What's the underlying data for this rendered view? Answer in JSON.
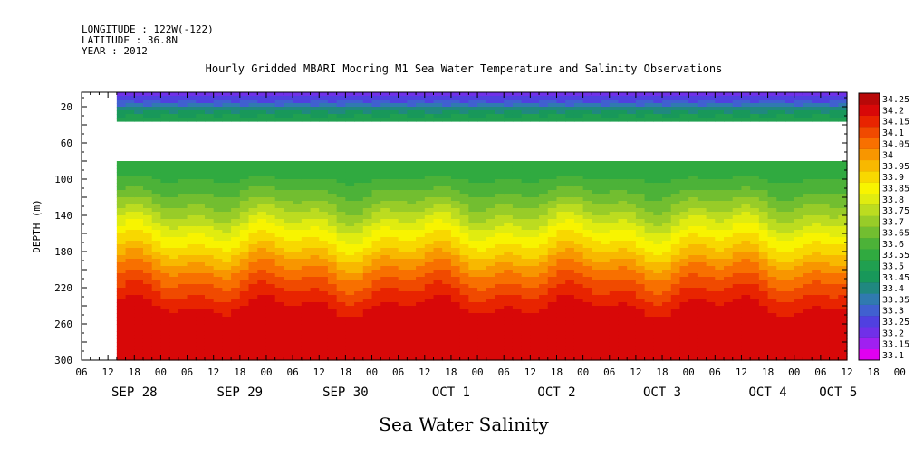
{
  "header_lines": [
    "LONGITUDE : 122W(-122)",
    "LATITUDE : 36.8N",
    "YEAR : 2012"
  ],
  "chart_data": {
    "type": "heatmap",
    "title": "Hourly Gridded MBARI Mooring M1 Sea Water Temperature and Salinity Observations",
    "xlabel": "Sea Water Salinity",
    "ylabel": "DEPTH (m)",
    "x_hour_ticks": [
      "06",
      "12",
      "18",
      "00",
      "06",
      "12",
      "18",
      "00",
      "06",
      "12",
      "18",
      "00",
      "06",
      "12",
      "18",
      "00",
      "06",
      "12",
      "18",
      "00",
      "06",
      "12",
      "18",
      "00",
      "06",
      "12",
      "18",
      "00",
      "06",
      "12",
      "18",
      "00",
      "06"
    ],
    "x_date_labels": [
      {
        "label": "SEP 28",
        "hour": 12
      },
      {
        "label": "SEP 29",
        "hour": 36
      },
      {
        "label": "SEP 30",
        "hour": 60
      },
      {
        "label": "OCT  1",
        "hour": 84
      },
      {
        "label": "OCT  2",
        "hour": 108
      },
      {
        "label": "OCT  3",
        "hour": 132
      },
      {
        "label": "OCT  4",
        "hour": 156
      },
      {
        "label": "OCT  5",
        "hour": 172
      }
    ],
    "xlim_hours": [
      0,
      174
    ],
    "data_start_hour": 8,
    "data_end_hour": 174,
    "y_ticks": [
      20,
      60,
      100,
      140,
      180,
      220,
      260,
      300
    ],
    "ylim": [
      4,
      300
    ],
    "y_inverted": true,
    "missing_depth_range": [
      34,
      80
    ],
    "levels": [
      33.1,
      33.15,
      33.2,
      33.25,
      33.3,
      33.35,
      33.4,
      33.45,
      33.5,
      33.55,
      33.6,
      33.65,
      33.7,
      33.75,
      33.8,
      33.85,
      33.9,
      33.95,
      34,
      34.05,
      34.1,
      34.15,
      34.2,
      34.25
    ],
    "colors": [
      "#e000f0",
      "#a020f0",
      "#7030e8",
      "#5040e0",
      "#4060d0",
      "#307ab0",
      "#208880",
      "#18985a",
      "#20a050",
      "#30aa40",
      "#4cb238",
      "#72be30",
      "#98cc28",
      "#bcdc20",
      "#e0ec10",
      "#f8f400",
      "#f8d800",
      "#f8b800",
      "#f89600",
      "#f87000",
      "#f04a00",
      "#e82400",
      "#d80808",
      "#b80808"
    ],
    "salinity_profile": [
      {
        "depth": 4,
        "value": 33.22
      },
      {
        "depth": 12,
        "value": 33.28
      },
      {
        "depth": 20,
        "value": 33.4
      },
      {
        "depth": 30,
        "value": 33.5
      },
      {
        "depth": 40,
        "value": 33.52
      },
      {
        "depth": 80,
        "value": 33.56
      },
      {
        "depth": 100,
        "value": 33.6
      },
      {
        "depth": 120,
        "value": 33.67
      },
      {
        "depth": 140,
        "value": 33.76
      },
      {
        "depth": 160,
        "value": 33.86
      },
      {
        "depth": 180,
        "value": 33.95
      },
      {
        "depth": 200,
        "value": 34.05
      },
      {
        "depth": 220,
        "value": 34.13
      },
      {
        "depth": 240,
        "value": 34.2
      },
      {
        "depth": 260,
        "value": 34.24
      },
      {
        "depth": 280,
        "value": 34.22
      },
      {
        "depth": 300,
        "value": 34.2
      }
    ],
    "grid": false,
    "legend": "right"
  }
}
